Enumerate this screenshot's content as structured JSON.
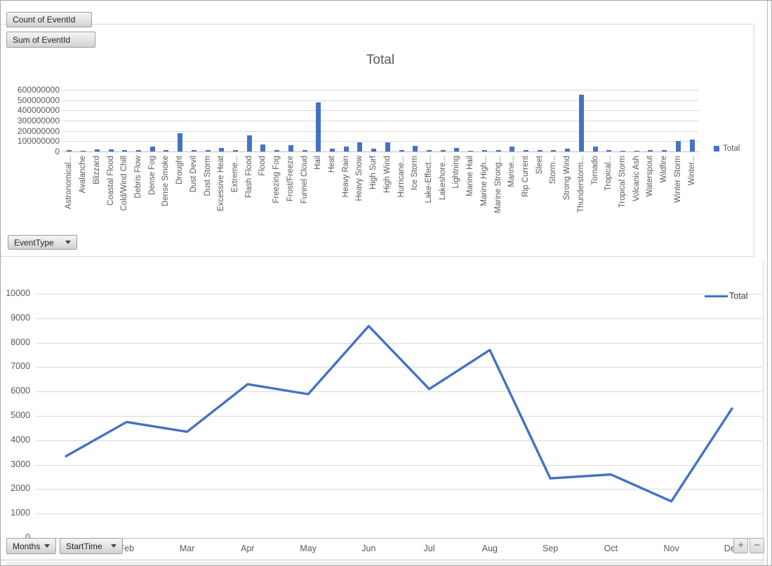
{
  "field_buttons": {
    "count_of_eventid": "Count of EventId",
    "sum_of_eventid": "Sum of EventId",
    "event_type": "EventType",
    "months": "Months",
    "start_time": "StartTime"
  },
  "zoom_buttons": {
    "zoom_in": "+",
    "zoom_out": "−"
  },
  "colors": {
    "series_blue": "#4472C4",
    "gridline": "#D9D9D9",
    "axis_line": "#BFBFBF",
    "axis_text": "#595959"
  },
  "chart_data": [
    {
      "type": "bar",
      "title": "Total",
      "series_name": "Total",
      "legend_position": "right",
      "grid": true,
      "ylim": [
        0,
        600000000
      ],
      "yticks": [
        0,
        100000000,
        200000000,
        300000000,
        400000000,
        500000000,
        600000000
      ],
      "categories": [
        "Astronomical...",
        "Avalanche",
        "Blizzard",
        "Coastal Flood",
        "Cold/Wind Chill",
        "Debris Flow",
        "Dense Fog",
        "Dense Smoke",
        "Drought",
        "Dust Devil",
        "Dust Storm",
        "Excessive Heat",
        "Extreme...",
        "Flash Flood",
        "Flood",
        "Freezing Fog",
        "Frost/Freeze",
        "Funnel Cloud",
        "Hail",
        "Heat",
        "Heavy Rain",
        "Heavy Snow",
        "High Surf",
        "High Wind",
        "Hurricane...",
        "Ice Storm",
        "Lake-Effect...",
        "Lakeshore...",
        "Lightning",
        "Marine Hail",
        "Marine High...",
        "Marine Strong...",
        "Marine...",
        "Rip Current",
        "Sleet",
        "Storm...",
        "Strong Wind",
        "Thunderstorm...",
        "Tornado",
        "Tropical...",
        "Tropical Storm",
        "Volcanic Ash",
        "Waterspout",
        "Wildfire",
        "Winter Storm",
        "Winter..."
      ],
      "values": [
        15000000,
        10000000,
        20000000,
        20000000,
        12000000,
        15000000,
        45000000,
        12000000,
        180000000,
        14000000,
        14000000,
        35000000,
        14000000,
        155000000,
        70000000,
        13000000,
        60000000,
        17000000,
        475000000,
        27000000,
        48000000,
        92000000,
        28000000,
        87000000,
        14000000,
        57000000,
        12000000,
        14000000,
        37000000,
        10000000,
        14000000,
        16000000,
        50000000,
        12000000,
        12000000,
        14000000,
        30000000,
        555000000,
        50000000,
        14000000,
        10000000,
        8000000,
        16000000,
        16000000,
        100000000,
        115000000
      ]
    },
    {
      "type": "line",
      "title": "",
      "series_name": "Total",
      "legend_position": "top-right",
      "grid": true,
      "ylim": [
        0,
        10000
      ],
      "yticks": [
        0,
        1000,
        2000,
        3000,
        4000,
        5000,
        6000,
        7000,
        8000,
        9000,
        10000
      ],
      "categories": [
        "Jan",
        "Feb",
        "Mar",
        "Apr",
        "May",
        "Jun",
        "Jul",
        "Aug",
        "Sep",
        "Oct",
        "Nov",
        "Dec"
      ],
      "values": [
        3350,
        4750,
        4350,
        6300,
        5890,
        8680,
        6100,
        7700,
        2440,
        2600,
        1500,
        5300
      ]
    }
  ]
}
